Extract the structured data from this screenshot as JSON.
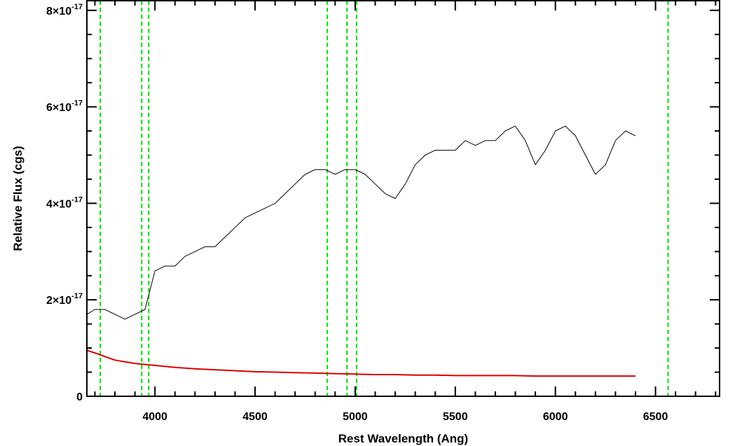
{
  "chart_data": {
    "type": "line",
    "xlabel": "Rest Wavelength (Ang)",
    "ylabel": "Relative Flux (cgs)",
    "xlim": [
      3660,
      6820
    ],
    "ylim": [
      0,
      8.2e-17
    ],
    "grid": false,
    "x_ticks": [
      {
        "value": 4000,
        "label": "4000"
      },
      {
        "value": 4500,
        "label": "4500"
      },
      {
        "value": 5000,
        "label": "5000"
      },
      {
        "value": 5500,
        "label": "5500"
      },
      {
        "value": 6000,
        "label": "6000"
      },
      {
        "value": 6500,
        "label": "6500"
      }
    ],
    "y_ticks": [
      {
        "value": 0,
        "mantissa": "0",
        "exponent": ""
      },
      {
        "value": 2e-17,
        "mantissa": "2×10",
        "exponent": "-17"
      },
      {
        "value": 4e-17,
        "mantissa": "4×10",
        "exponent": "-17"
      },
      {
        "value": 6e-17,
        "mantissa": "6×10",
        "exponent": "-17"
      },
      {
        "value": 8e-17,
        "mantissa": "8×10",
        "exponent": "-17"
      }
    ],
    "vertical_markers": {
      "color": "#00dd00",
      "x": [
        3727,
        3934,
        3969,
        4861,
        4959,
        5007,
        6563
      ]
    },
    "series": [
      {
        "color": "#000000",
        "x": [
          3660,
          3700,
          3750,
          3800,
          3850,
          3900,
          3950,
          4000,
          4050,
          4100,
          4150,
          4200,
          4250,
          4300,
          4350,
          4400,
          4450,
          4500,
          4550,
          4600,
          4650,
          4700,
          4750,
          4800,
          4850,
          4900,
          4950,
          5000,
          5050,
          5100,
          5150,
          5200,
          5250,
          5300,
          5350,
          5400,
          5450,
          5500,
          5550,
          5600,
          5650,
          5700,
          5750,
          5800,
          5850,
          5900,
          5950,
          6000,
          6050,
          6100,
          6150,
          6200,
          6250,
          6300,
          6350,
          6400
        ],
        "y": [
          1.7e-17,
          1.8e-17,
          1.8e-17,
          1.7e-17,
          1.6e-17,
          1.7e-17,
          1.8e-17,
          2.6e-17,
          2.7e-17,
          2.7e-17,
          2.9e-17,
          3e-17,
          3.1e-17,
          3.1e-17,
          3.3e-17,
          3.5e-17,
          3.7e-17,
          3.8e-17,
          3.9e-17,
          4e-17,
          4.2e-17,
          4.4e-17,
          4.6e-17,
          4.7e-17,
          4.7e-17,
          4.6e-17,
          4.7e-17,
          4.7e-17,
          4.6e-17,
          4.4e-17,
          4.2e-17,
          4.1e-17,
          4.4e-17,
          4.8e-17,
          5e-17,
          5.1e-17,
          5.1e-17,
          5.1e-17,
          5.3e-17,
          5.2e-17,
          5.3e-17,
          5.3e-17,
          5.5e-17,
          5.6e-17,
          5.3e-17,
          4.8e-17,
          5.1e-17,
          5.5e-17,
          5.6e-17,
          5.4e-17,
          5e-17,
          4.6e-17,
          4.8e-17,
          5.3e-17,
          5.5e-17,
          5.4e-17
        ]
      },
      {
        "color": "#dd0000",
        "x": [
          3660,
          3700,
          3800,
          3900,
          4000,
          4100,
          4200,
          4300,
          4400,
          4500,
          4600,
          4700,
          4800,
          4900,
          5000,
          5100,
          5200,
          5300,
          5400,
          5500,
          5600,
          5700,
          5800,
          5900,
          6000,
          6100,
          6200,
          6300,
          6400
        ],
        "y": [
          9.5e-18,
          9e-18,
          7.5e-18,
          6.8e-18,
          6.4e-18,
          6e-18,
          5.7e-18,
          5.5e-18,
          5.3e-18,
          5.1e-18,
          5e-18,
          4.9e-18,
          4.8e-18,
          4.7e-18,
          4.6e-18,
          4.5e-18,
          4.5e-18,
          4.4e-18,
          4.4e-18,
          4.3e-18,
          4.3e-18,
          4.3e-18,
          4.3e-18,
          4.2e-18,
          4.2e-18,
          4.2e-18,
          4.2e-18,
          4.2e-18,
          4.2e-18
        ]
      }
    ]
  }
}
